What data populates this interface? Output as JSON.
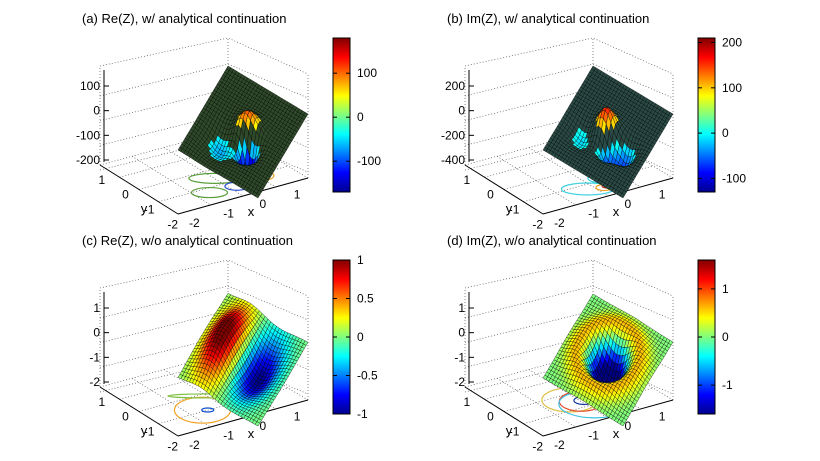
{
  "figure": {
    "background": "#ffffff"
  },
  "chart_data": [
    {
      "type": "surface",
      "title": "(a) Re(Z), w/ analytical continuation",
      "xlabel": "x",
      "ylabel": "y",
      "x_ticks": [
        "-2",
        "-1",
        "0",
        "1"
      ],
      "y_ticks": [
        "-2",
        "-1",
        "0",
        "1"
      ],
      "z_ticks": [
        "100",
        "0",
        "-100",
        "-200"
      ],
      "xlim": [
        -2.5,
        2
      ],
      "ylim": [
        -2,
        2
      ],
      "zlim": [
        -250,
        180
      ],
      "colorbar": {
        "ticks": [
          "100",
          "0",
          "-100"
        ],
        "range": [
          -170,
          180
        ]
      },
      "surface_color_mean": "#3c5a3c",
      "features": [
        {
          "type": "peak",
          "x": 0.2,
          "y": 0,
          "z": 150
        },
        {
          "type": "trough",
          "x": 0.4,
          "y": -0.3,
          "z": -170
        }
      ],
      "contour_colors": [
        "#5a9e3c",
        "#f0a020",
        "#3050d0"
      ],
      "grid": true
    },
    {
      "type": "surface",
      "title": "(b) Im(Z), w/ analytical continuation",
      "xlabel": "x",
      "ylabel": "y",
      "x_ticks": [
        "-2",
        "-1",
        "0",
        "1"
      ],
      "y_ticks": [
        "-2",
        "-1",
        "0",
        "1"
      ],
      "z_ticks": [
        "200",
        "0",
        "-200",
        "-400"
      ],
      "xlim": [
        -2.5,
        2
      ],
      "ylim": [
        -2,
        2
      ],
      "zlim": [
        -500,
        220
      ],
      "colorbar": {
        "ticks": [
          "200",
          "100",
          "0",
          "-100"
        ],
        "range": [
          -130,
          210
        ]
      },
      "surface_color_mean": "#2f5f55",
      "features": [
        {
          "type": "peak",
          "x": -0.1,
          "y": 0,
          "z": 170
        },
        {
          "type": "trough",
          "x": 0.2,
          "y": -0.4,
          "z": -120
        },
        {
          "type": "trough",
          "x": 1.0,
          "y": -0.2,
          "z": -90
        }
      ],
      "contour_colors": [
        "#40d0e0",
        "#f0a020",
        "#c03020"
      ],
      "grid": true
    },
    {
      "type": "surface",
      "title": "(c) Re(Z), w/o analytical continuation",
      "xlabel": "x",
      "ylabel": "y",
      "x_ticks": [
        "-2",
        "-1",
        "0",
        "1"
      ],
      "y_ticks": [
        "-2",
        "-1",
        "0",
        "1"
      ],
      "z_ticks": [
        "1",
        "0",
        "-1",
        "-2"
      ],
      "xlim": [
        -2.5,
        2
      ],
      "ylim": [
        -2,
        2
      ],
      "zlim": [
        -2,
        1.1
      ],
      "colorbar": {
        "ticks": [
          "1",
          "0.5",
          "0",
          "-0.5",
          "-1"
        ],
        "range": [
          -1,
          1
        ]
      },
      "surface_color_mean": "#404858",
      "features": [
        {
          "type": "ridge",
          "x": -0.8,
          "y": 0,
          "z": 0.9
        },
        {
          "type": "valley",
          "x": 0.5,
          "y": 0.2,
          "z": -0.8
        }
      ],
      "contour_colors": [
        "#f0a020",
        "#1050d0",
        "#80c040"
      ],
      "grid": true
    },
    {
      "type": "surface",
      "title": "(d) Im(Z), w/o analytical continuation",
      "xlabel": "x",
      "ylabel": "y",
      "x_ticks": [
        "-2",
        "-1",
        "0",
        "1"
      ],
      "y_ticks": [
        "-2",
        "-1",
        "0",
        "1"
      ],
      "z_ticks": [
        "1",
        "0",
        "-1",
        "-2"
      ],
      "xlim": [
        -2.5,
        2
      ],
      "ylim": [
        -2,
        2
      ],
      "zlim": [
        -2.3,
        1.7
      ],
      "colorbar": {
        "ticks": [
          "1",
          "0",
          "-1"
        ],
        "range": [
          -1.6,
          1.6
        ]
      },
      "surface_color_mean": "#2a3050",
      "features": [
        {
          "type": "valley",
          "x": 0,
          "y": 0,
          "z": -1.5
        },
        {
          "type": "ring",
          "x": 0,
          "y": 0,
          "z": 0.2
        }
      ],
      "contour_colors": [
        "#e0c040",
        "#e05030",
        "#40c0e0",
        "#1030a0"
      ],
      "grid": true
    }
  ]
}
